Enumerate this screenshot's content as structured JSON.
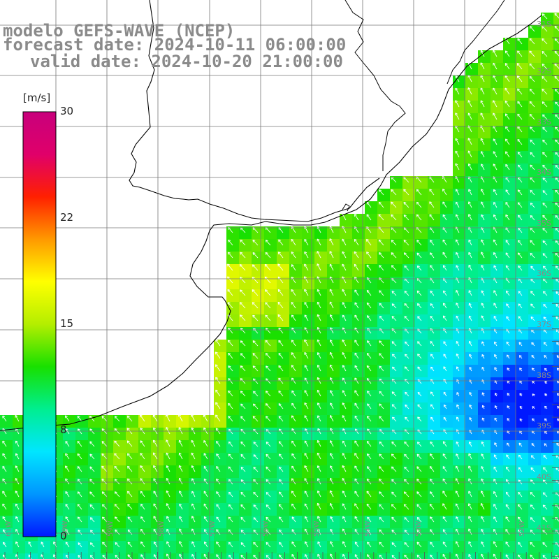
{
  "header": {
    "line1": "modelo GEFS-WAVE (NCEP)",
    "line2": "forecast date: 2024-10-11 06:00:00",
    "line3": "valid date: 2024-10-20 21:00:00"
  },
  "colorbar": {
    "unit": "[m/s]",
    "ticks": [
      "30",
      "22",
      "15",
      "8",
      "0"
    ],
    "gradient": [
      "#0018ff",
      "#0096ff",
      "#00e6ff",
      "#00ee90",
      "#18e000",
      "#b4ee00",
      "#ffff00",
      "#ff9900",
      "#ff2000",
      "#e0006a",
      "#c8007c"
    ]
  },
  "lat_labels": [
    "31S",
    "32S",
    "33S",
    "34S",
    "35S",
    "36S",
    "37S",
    "38S",
    "39S",
    "40S",
    "41S"
  ],
  "lon_labels": [
    "61W",
    "60W",
    "59W",
    "58W",
    "57W",
    "56W",
    "55W",
    "54W",
    "53W",
    "52W"
  ],
  "colors": {
    "land": "#ffffff",
    "coast": "#000000",
    "grid": "#777777",
    "vector": "#ffffff",
    "label_text": "#888888"
  }
}
